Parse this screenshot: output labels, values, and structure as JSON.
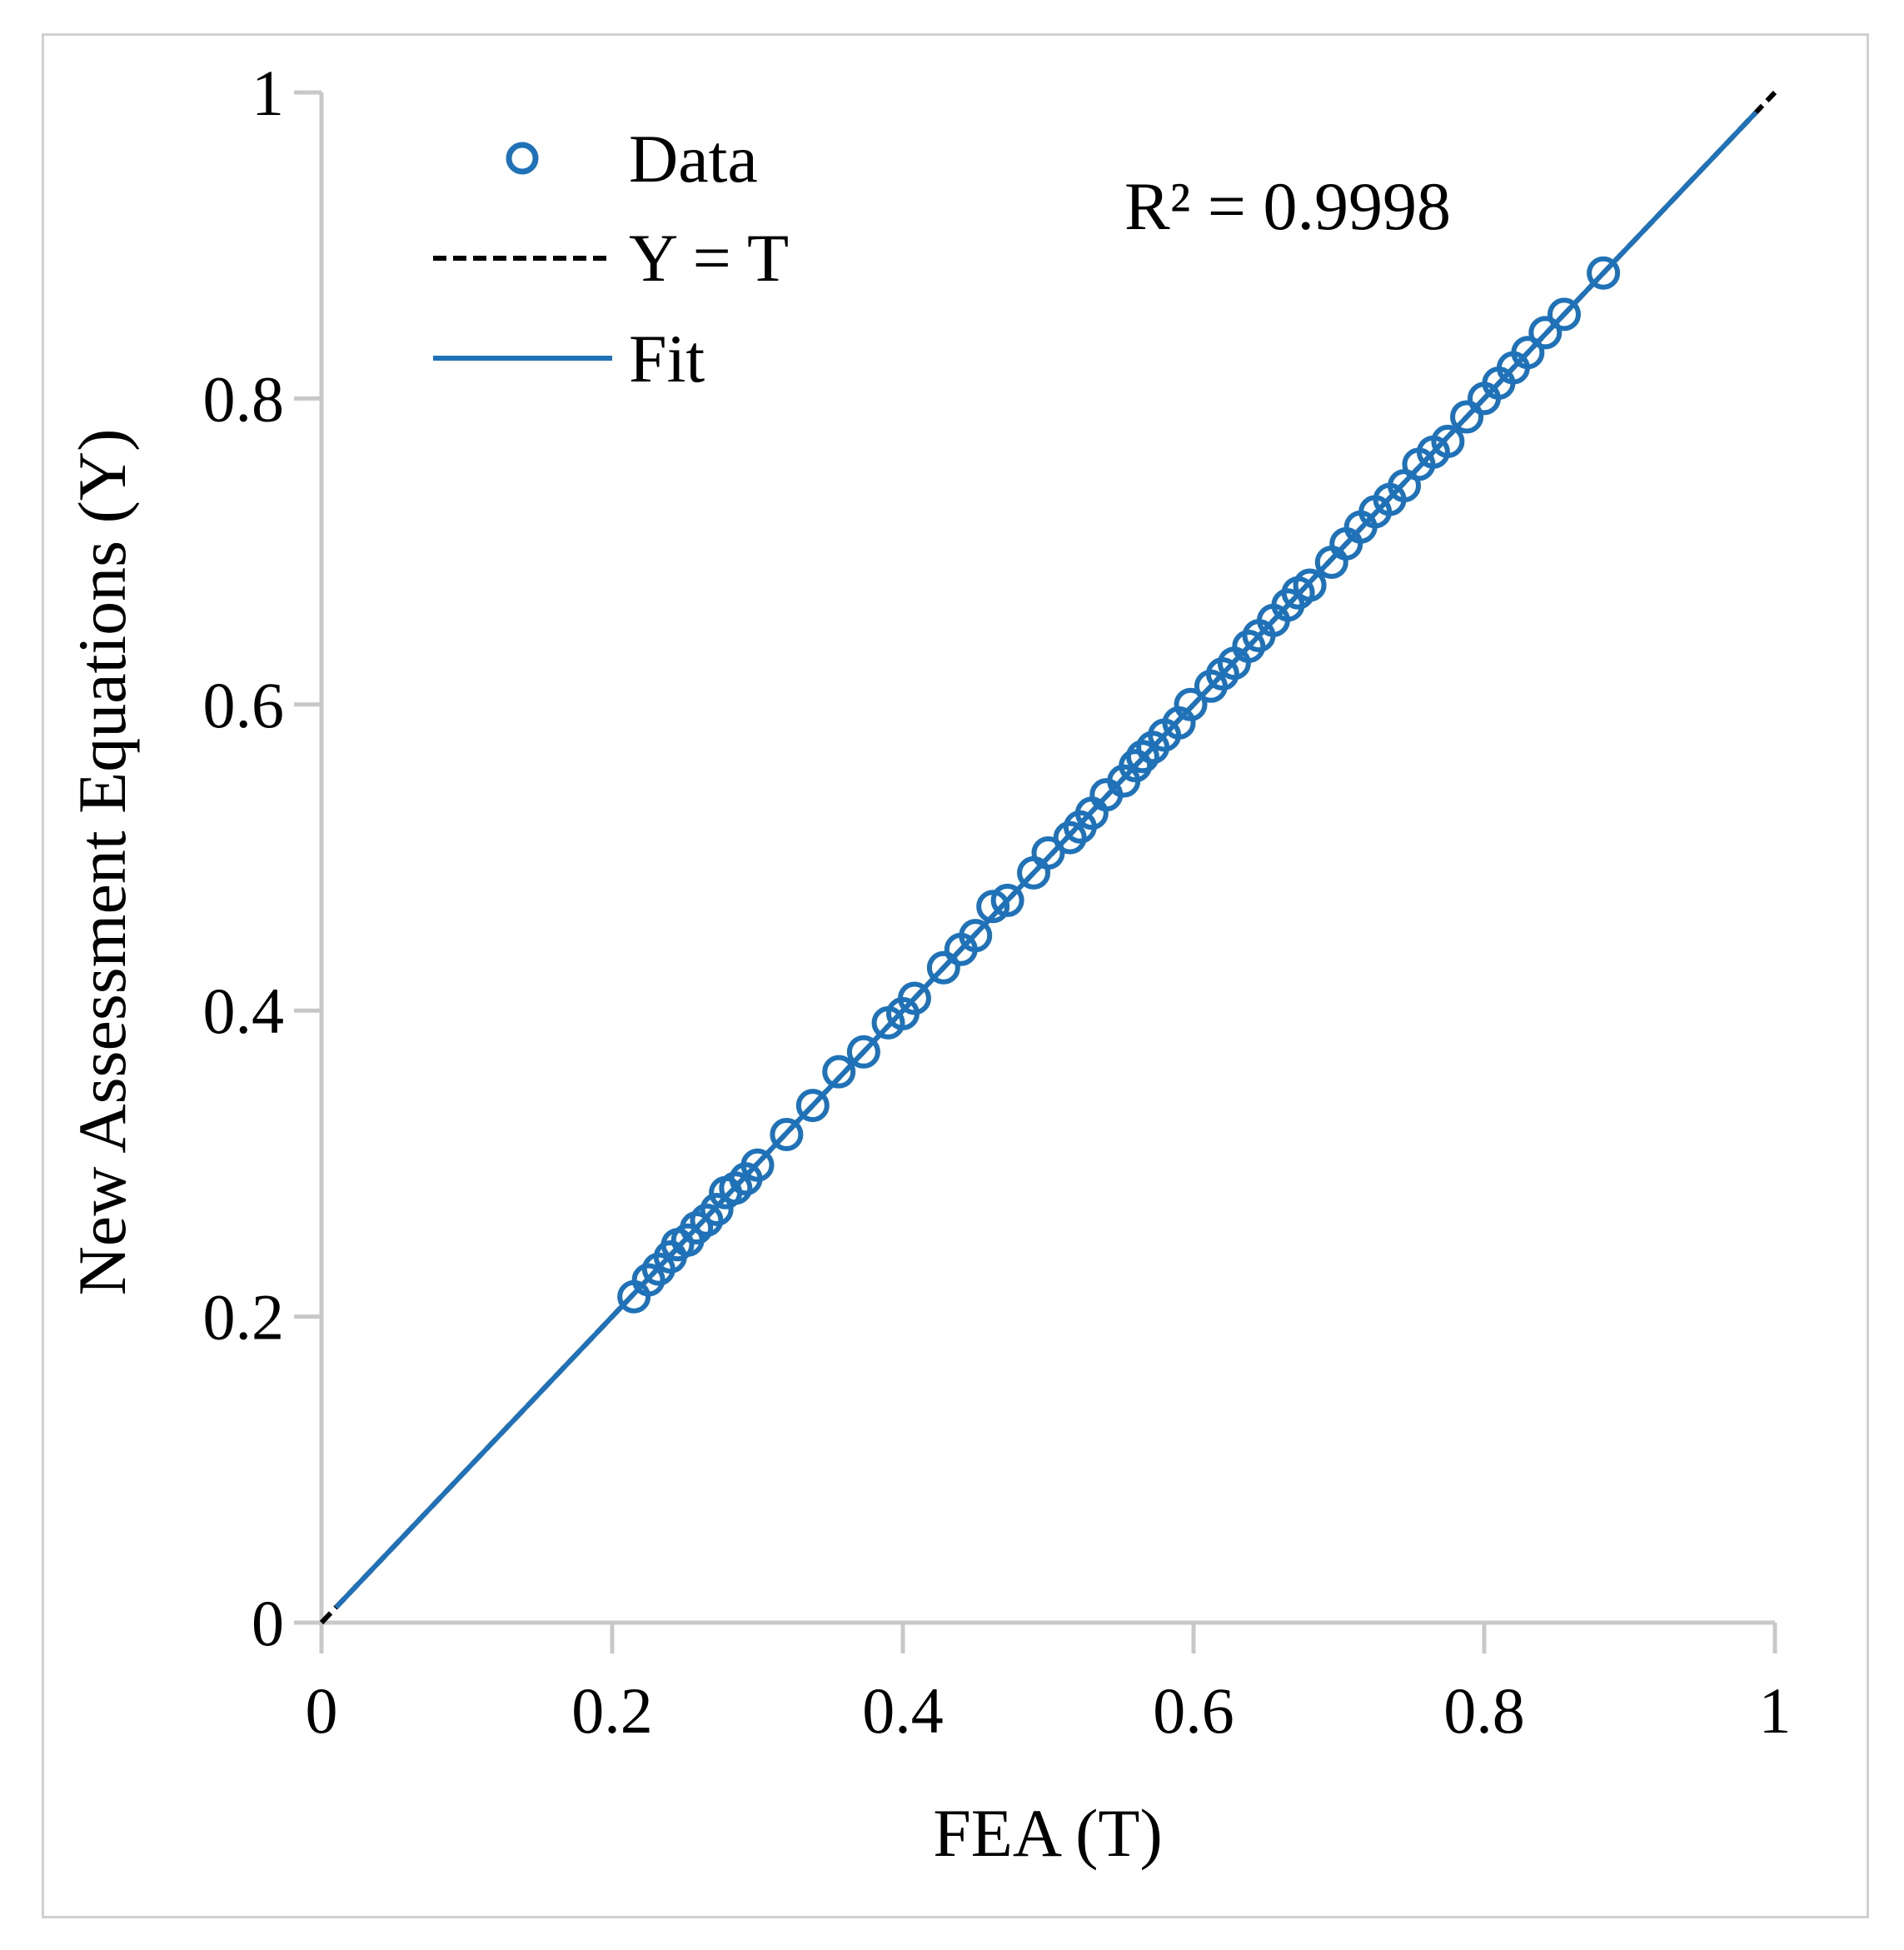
{
  "chart_data": {
    "type": "scatter",
    "xlabel": "FEA (T)",
    "ylabel": "New Assessment Equations (Y)",
    "xlim": [
      0,
      1
    ],
    "ylim": [
      0,
      1
    ],
    "xticks": [
      "0",
      "0.2",
      "0.4",
      "0.6",
      "0.8",
      "1"
    ],
    "yticks": [
      "0",
      "0.2",
      "0.4",
      "0.6",
      "0.8",
      "1"
    ],
    "grid": false,
    "legend_position": "top-left",
    "annotation": "R² = 0.9998",
    "colors": {
      "data": "#1f72b8",
      "fit": "#1f72b8",
      "reference": "#000000",
      "axis": "#c8c8c8"
    },
    "series": [
      {
        "name": "Data",
        "style": "markers-open-circle",
        "points": [
          [
            0.215,
            0.213
          ],
          [
            0.225,
            0.224
          ],
          [
            0.232,
            0.231
          ],
          [
            0.24,
            0.239
          ],
          [
            0.245,
            0.247
          ],
          [
            0.252,
            0.25
          ],
          [
            0.258,
            0.258
          ],
          [
            0.265,
            0.263
          ],
          [
            0.272,
            0.27
          ],
          [
            0.278,
            0.281
          ],
          [
            0.285,
            0.284
          ],
          [
            0.292,
            0.29
          ],
          [
            0.3,
            0.299
          ],
          [
            0.32,
            0.319
          ],
          [
            0.338,
            0.338
          ],
          [
            0.356,
            0.36
          ],
          [
            0.373,
            0.373
          ],
          [
            0.39,
            0.392
          ],
          [
            0.4,
            0.398
          ],
          [
            0.408,
            0.408
          ],
          [
            0.428,
            0.428
          ],
          [
            0.44,
            0.44
          ],
          [
            0.45,
            0.449
          ],
          [
            0.462,
            0.468
          ],
          [
            0.472,
            0.472
          ],
          [
            0.49,
            0.49
          ],
          [
            0.5,
            0.503
          ],
          [
            0.515,
            0.513
          ],
          [
            0.522,
            0.52
          ],
          [
            0.53,
            0.529
          ],
          [
            0.54,
            0.541
          ],
          [
            0.552,
            0.55
          ],
          [
            0.56,
            0.56
          ],
          [
            0.565,
            0.566
          ],
          [
            0.572,
            0.572
          ],
          [
            0.58,
            0.58
          ],
          [
            0.59,
            0.588
          ],
          [
            0.598,
            0.6
          ],
          [
            0.612,
            0.612
          ],
          [
            0.62,
            0.62
          ],
          [
            0.628,
            0.627
          ],
          [
            0.638,
            0.638
          ],
          [
            0.645,
            0.645
          ],
          [
            0.655,
            0.655
          ],
          [
            0.665,
            0.665
          ],
          [
            0.672,
            0.673
          ],
          [
            0.68,
            0.678
          ],
          [
            0.695,
            0.693
          ],
          [
            0.705,
            0.705
          ],
          [
            0.715,
            0.716
          ],
          [
            0.725,
            0.726
          ],
          [
            0.735,
            0.734
          ],
          [
            0.745,
            0.743
          ],
          [
            0.755,
            0.757
          ],
          [
            0.765,
            0.765
          ],
          [
            0.775,
            0.772
          ],
          [
            0.788,
            0.788
          ],
          [
            0.8,
            0.8
          ],
          [
            0.81,
            0.81
          ],
          [
            0.82,
            0.82
          ],
          [
            0.83,
            0.83
          ],
          [
            0.842,
            0.843
          ],
          [
            0.855,
            0.855
          ],
          [
            0.882,
            0.882
          ]
        ]
      },
      {
        "name": "Y = T",
        "style": "dashed-line",
        "x": [
          0,
          1
        ],
        "y": [
          0,
          1
        ]
      },
      {
        "name": "Fit",
        "style": "solid-line",
        "x": [
          0.01,
          0.987
        ],
        "y": [
          0.01,
          0.987
        ]
      }
    ]
  }
}
